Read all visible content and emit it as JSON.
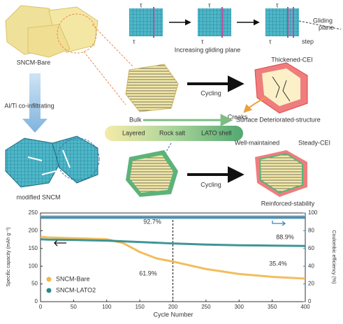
{
  "diagram": {
    "bare_label": "SNCM-Bare",
    "tau": "τ",
    "gliding": "Gliding",
    "plane": "plane",
    "step": "step",
    "increasing": "Increasing gliding plane",
    "cycling": "Cycling",
    "thickened_cei": "Thickened-CEI",
    "creaks": "Creaks",
    "deteriorated": "Deteriorated-structure",
    "co_infiltrating": "Al/Ti co-infiltrating",
    "bulk": "Bulk",
    "surface": "Surface",
    "layered": "Layered",
    "rock_salt": "Rock salt",
    "lato_shell": "LATO shell",
    "well_maintained": "Well-maintained",
    "steady_cei": "Steady-CEI",
    "modified": "modified SNCM",
    "reinforced": "Reinforced-stability"
  },
  "chart_data": {
    "type": "line",
    "xlabel": "Cycle Number",
    "ylabel": "Specific capacity (mAh g⁻¹)",
    "y2label": "Coulombic efficiency (%)",
    "x": [
      0,
      10,
      50,
      100,
      125,
      150,
      175,
      200,
      250,
      300,
      350,
      400
    ],
    "series": [
      {
        "name": "SNCM-Bare",
        "color": "#f2b64a",
        "values": [
          183,
          181,
          179,
          176,
          165,
          140,
          122,
          113,
          92,
          78,
          70,
          65
        ]
      },
      {
        "name": "SNCM-LATO2",
        "color": "#2a8a8c",
        "values": [
          176,
          175,
          174,
          172,
          170,
          168,
          166,
          164,
          161,
          159,
          158,
          157
        ]
      },
      {
        "color": "#f7c77a",
        "axis": "y2",
        "values": [
          96,
          96,
          96,
          96,
          96,
          96,
          96,
          96,
          96,
          96,
          96,
          96
        ]
      },
      {
        "color": "#3b86b8",
        "axis": "y2",
        "values": [
          95,
          95,
          95,
          95,
          95,
          95,
          95,
          95,
          95,
          95,
          95,
          95
        ]
      }
    ],
    "annotations": [
      "92.7%",
      "88.9%",
      "61.9%",
      "35.4%"
    ],
    "vline": 200,
    "xlim": [
      0,
      400
    ],
    "xticks": [
      0,
      50,
      100,
      150,
      200,
      250,
      300,
      350,
      400
    ],
    "ylim": [
      0,
      250
    ],
    "yticks": [
      0,
      50,
      100,
      150,
      200,
      250
    ],
    "y2lim": [
      0,
      100
    ],
    "y2ticks": [
      0,
      20,
      40,
      60,
      80,
      100
    ],
    "legend": "lower left"
  }
}
